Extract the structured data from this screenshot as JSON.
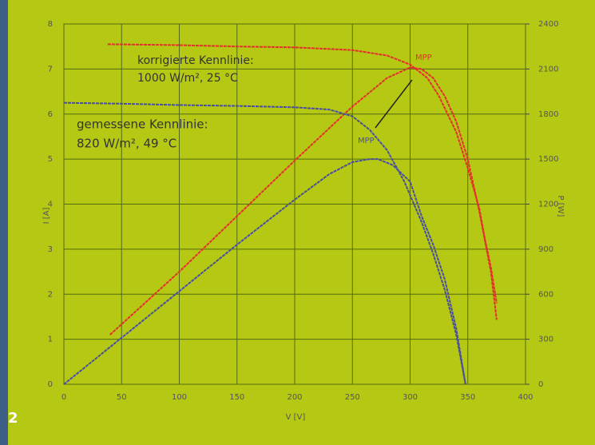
{
  "chart_data": {
    "type": "line",
    "xlabel": "V [V]",
    "ylabel": "I [A]",
    "y2label": "P [W]",
    "xlim": [
      0,
      400
    ],
    "xticks": [
      0,
      50,
      100,
      150,
      200,
      250,
      300,
      350,
      400
    ],
    "ylim": [
      0,
      8
    ],
    "yticks": [
      0,
      1,
      2,
      3,
      4,
      5,
      6,
      7,
      8
    ],
    "y2lim": [
      0,
      2400
    ],
    "y2ticks": [
      0,
      300,
      600,
      900,
      1200,
      1500,
      1800,
      2100,
      2400
    ],
    "grid": true,
    "series": [
      {
        "color": "#e4302c",
        "x": [
          38,
          100,
          150,
          200,
          250,
          280,
          300,
          315,
          325,
          340,
          350,
          360,
          365,
          370,
          375
        ],
        "values": [
          7.55,
          7.53,
          7.5,
          7.48,
          7.42,
          7.3,
          7.1,
          6.8,
          6.4,
          5.6,
          4.8,
          3.9,
          3.2,
          2.6,
          1.8
        ]
      },
      {
        "color": "#e4302c",
        "axis": "y2",
        "x": [
          40,
          100,
          150,
          200,
          250,
          280,
          300,
          310,
          320,
          330,
          340,
          350,
          360,
          370,
          375
        ],
        "values": [
          330,
          750,
          1120,
          1490,
          1850,
          2040,
          2110,
          2100,
          2040,
          1920,
          1750,
          1500,
          1150,
          750,
          430
        ]
      },
      {
        "color": "#4a4ea2",
        "x": [
          0,
          50,
          100,
          150,
          200,
          230,
          250,
          265,
          280,
          295,
          310,
          320,
          330,
          340,
          348
        ],
        "values": [
          6.25,
          6.23,
          6.2,
          6.18,
          6.15,
          6.1,
          5.95,
          5.65,
          5.2,
          4.5,
          3.6,
          2.9,
          2.1,
          1.1,
          0
        ]
      },
      {
        "color": "#4a4ea2",
        "axis": "y2",
        "x": [
          0,
          50,
          100,
          150,
          200,
          230,
          250,
          265,
          272,
          285,
          300,
          310,
          320,
          330,
          340,
          348
        ],
        "values": [
          0,
          310,
          620,
          930,
          1230,
          1400,
          1480,
          1500,
          1500,
          1460,
          1350,
          1120,
          930,
          700,
          370,
          0
        ]
      }
    ],
    "annotations": [
      "korrigierte Kennlinie:",
      "1000 W/m², 25 °C",
      "gemessene Kennlinie:",
      "820 W/m², 49 °C",
      "MPP",
      "MPP"
    ],
    "figure_number": "2"
  }
}
